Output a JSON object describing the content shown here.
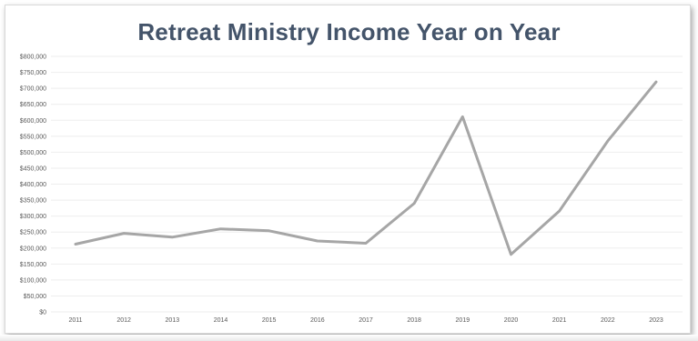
{
  "chart_data": {
    "type": "line",
    "title": "Retreat Ministry Income Year on Year",
    "xlabel": "",
    "ylabel": "",
    "categories": [
      "2011",
      "2012",
      "2013",
      "2014",
      "2015",
      "2016",
      "2017",
      "2018",
      "2019",
      "2020",
      "2021",
      "2022",
      "2023"
    ],
    "series": [
      {
        "values": [
          212000,
          246000,
          234000,
          260000,
          254000,
          222000,
          215000,
          340000,
          611000,
          180000,
          316000,
          535000,
          720000
        ]
      }
    ],
    "ylim": [
      0,
      800000
    ],
    "yticks": [
      0,
      50000,
      100000,
      150000,
      200000,
      250000,
      300000,
      350000,
      400000,
      450000,
      500000,
      550000,
      600000,
      650000,
      700000,
      750000,
      800000
    ],
    "ytick_labels": [
      "$0",
      "$50,000",
      "$100,000",
      "$150,000",
      "$200,000",
      "$250,000",
      "$300,000",
      "$350,000",
      "$400,000",
      "$450,000",
      "$500,000",
      "$550,000",
      "$600,000",
      "$650,000",
      "$700,000",
      "$750,000",
      "$800,000"
    ],
    "grid": true,
    "legend": "none",
    "line_color": "#a6a6a6",
    "title_color": "#44546a"
  }
}
